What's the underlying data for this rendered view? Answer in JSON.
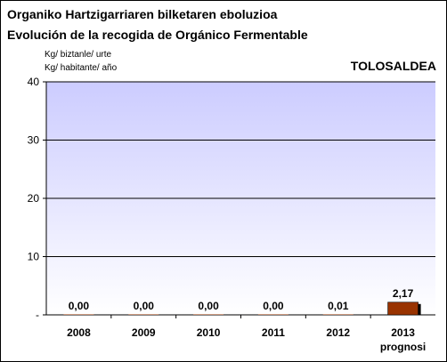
{
  "chart_data": {
    "type": "bar",
    "title": "Organiko Hartzigarriaren bilketaren eboluzioa",
    "subtitle": "Evolución de la recogida de Orgánico Fermentable",
    "ylabel_line1": "Kg/ biztanle/ urte",
    "ylabel_line2": "Kg/ habitante/ año",
    "region_label": "TOLOSALDEA",
    "categories": [
      "2008",
      "2009",
      "2010",
      "2011",
      "2012",
      "2013"
    ],
    "category_sublabels": [
      "",
      "",
      "",
      "",
      "",
      "prognosi"
    ],
    "values": [
      0.0,
      0.0,
      0.0,
      0.0,
      0.01,
      2.17
    ],
    "value_labels": [
      "0,00",
      "0,00",
      "0,00",
      "0,00",
      "0,01",
      "2,17"
    ],
    "ylim": [
      0,
      40
    ],
    "yticks": [
      0,
      10,
      20,
      30,
      40
    ],
    "ytick_labels": [
      "-",
      "10",
      "20",
      "30",
      "40"
    ],
    "grid": true,
    "colors": {
      "bar": "#993300",
      "bar_shadow": "#000000",
      "plot_bg_top": "#ccccff",
      "plot_bg_bottom": "#ffffff",
      "gridline": "#000000"
    }
  }
}
